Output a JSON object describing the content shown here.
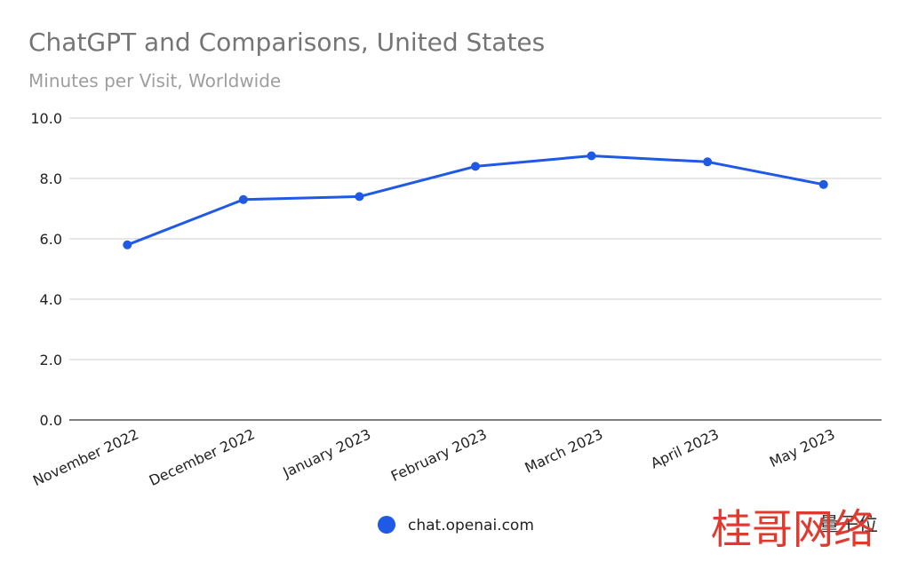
{
  "chart_data": {
    "type": "line",
    "title": "ChatGPT and Comparisons, United States",
    "subtitle": "Minutes per Visit, Worldwide",
    "xlabel": "",
    "ylabel": "",
    "categories": [
      "November 2022",
      "December 2022",
      "January 2023",
      "February 2023",
      "March 2023",
      "April 2023",
      "May 2023"
    ],
    "series": [
      {
        "name": "chat.openai.com",
        "values": [
          5.8,
          7.3,
          7.4,
          8.4,
          8.75,
          8.55,
          7.8
        ],
        "color": "#2059e6"
      }
    ],
    "ylim": [
      0,
      10
    ],
    "yticks": [
      "0.0",
      "2.0",
      "4.0",
      "6.0",
      "8.0",
      "10.0"
    ],
    "grid": true,
    "legend": "bottom"
  },
  "watermark": {
    "text_cn": "桂哥网络",
    "text_small": "量子位"
  }
}
